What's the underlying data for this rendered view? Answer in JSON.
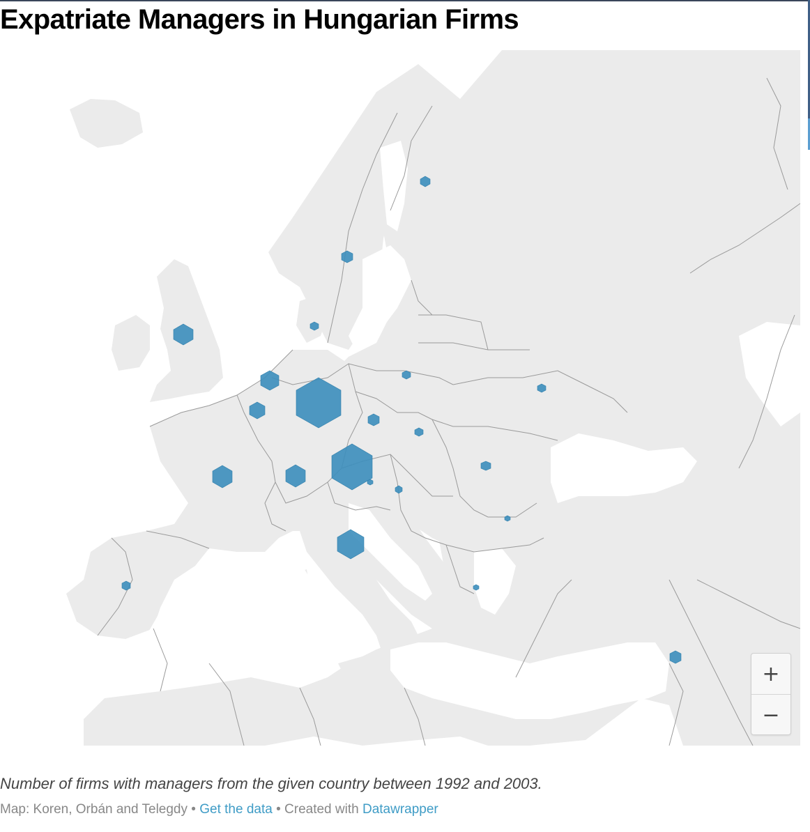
{
  "title": "Expatriate Managers in Hungarian Firms",
  "description": "Number of firms with managers from the given country between 1992 and 2003.",
  "footer": {
    "credit": "Map: Koren, Orbán and Telegdy",
    "separator": "•",
    "data_link": "Get the data",
    "created_with": "Created with",
    "tool_link": "Datawrapper"
  },
  "zoom": {
    "in_label": "+",
    "out_label": "−"
  },
  "colors": {
    "land": "#ebebeb",
    "border": "#9a9a9a",
    "symbol": "#3c8ebd",
    "link": "#3f9cc6"
  },
  "symbol_shape": "hexagon",
  "chart_data": {
    "type": "symbol-map"
  }
}
